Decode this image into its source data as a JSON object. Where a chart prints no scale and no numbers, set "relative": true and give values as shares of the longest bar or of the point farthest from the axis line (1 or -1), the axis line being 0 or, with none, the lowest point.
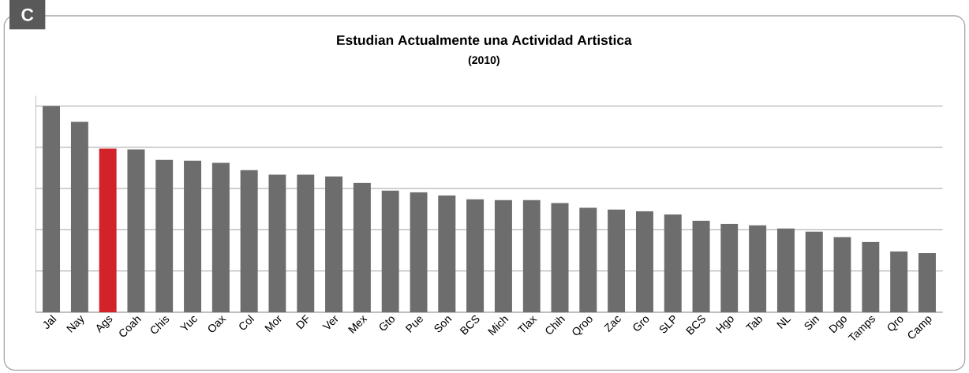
{
  "chart_data": {
    "type": "bar",
    "title": "Estudian Actualmente una Actividad Artistica",
    "subtitle": "(2010)",
    "annotations": [
      "C"
    ],
    "relative": true,
    "grid": "y",
    "categories": [
      "Jal",
      "Nay",
      "Ags",
      "Coah",
      "Chis",
      "Yuc",
      "Oax",
      "Col",
      "Mor",
      "DF",
      "Ver",
      "Mex",
      "Gto",
      "Pue",
      "Son",
      "BCS",
      "Mich",
      "Tlax",
      "Chih",
      "Qroo",
      "Zac",
      "Gro",
      "SLP",
      "BCS",
      "Hgo",
      "Tab",
      "NL",
      "Sin",
      "Dgo",
      "Tamps",
      "Qro",
      "Camp"
    ],
    "values": [
      1,
      0.923,
      0.793,
      0.789,
      0.739,
      0.736,
      0.724,
      0.69,
      0.667,
      0.667,
      0.659,
      0.628,
      0.59,
      0.582,
      0.567,
      0.548,
      0.544,
      0.544,
      0.529,
      0.506,
      0.498,
      0.49,
      0.475,
      0.444,
      0.429,
      0.421,
      0.406,
      0.391,
      0.364,
      0.341,
      0.295,
      0.287
    ],
    "colors": [
      "#6d6d6d",
      "#6d6d6d",
      "#d2232a",
      "#6d6d6d",
      "#6d6d6d",
      "#6d6d6d",
      "#6d6d6d",
      "#6d6d6d",
      "#6d6d6d",
      "#6d6d6d",
      "#6d6d6d",
      "#6d6d6d",
      "#6d6d6d",
      "#6d6d6d",
      "#6d6d6d",
      "#6d6d6d",
      "#6d6d6d",
      "#6d6d6d",
      "#6d6d6d",
      "#6d6d6d",
      "#6d6d6d",
      "#6d6d6d",
      "#6d6d6d",
      "#6d6d6d",
      "#6d6d6d",
      "#6d6d6d",
      "#6d6d6d",
      "#6d6d6d",
      "#6d6d6d",
      "#6d6d6d",
      "#6d6d6d",
      "#6d6d6d"
    ]
  }
}
